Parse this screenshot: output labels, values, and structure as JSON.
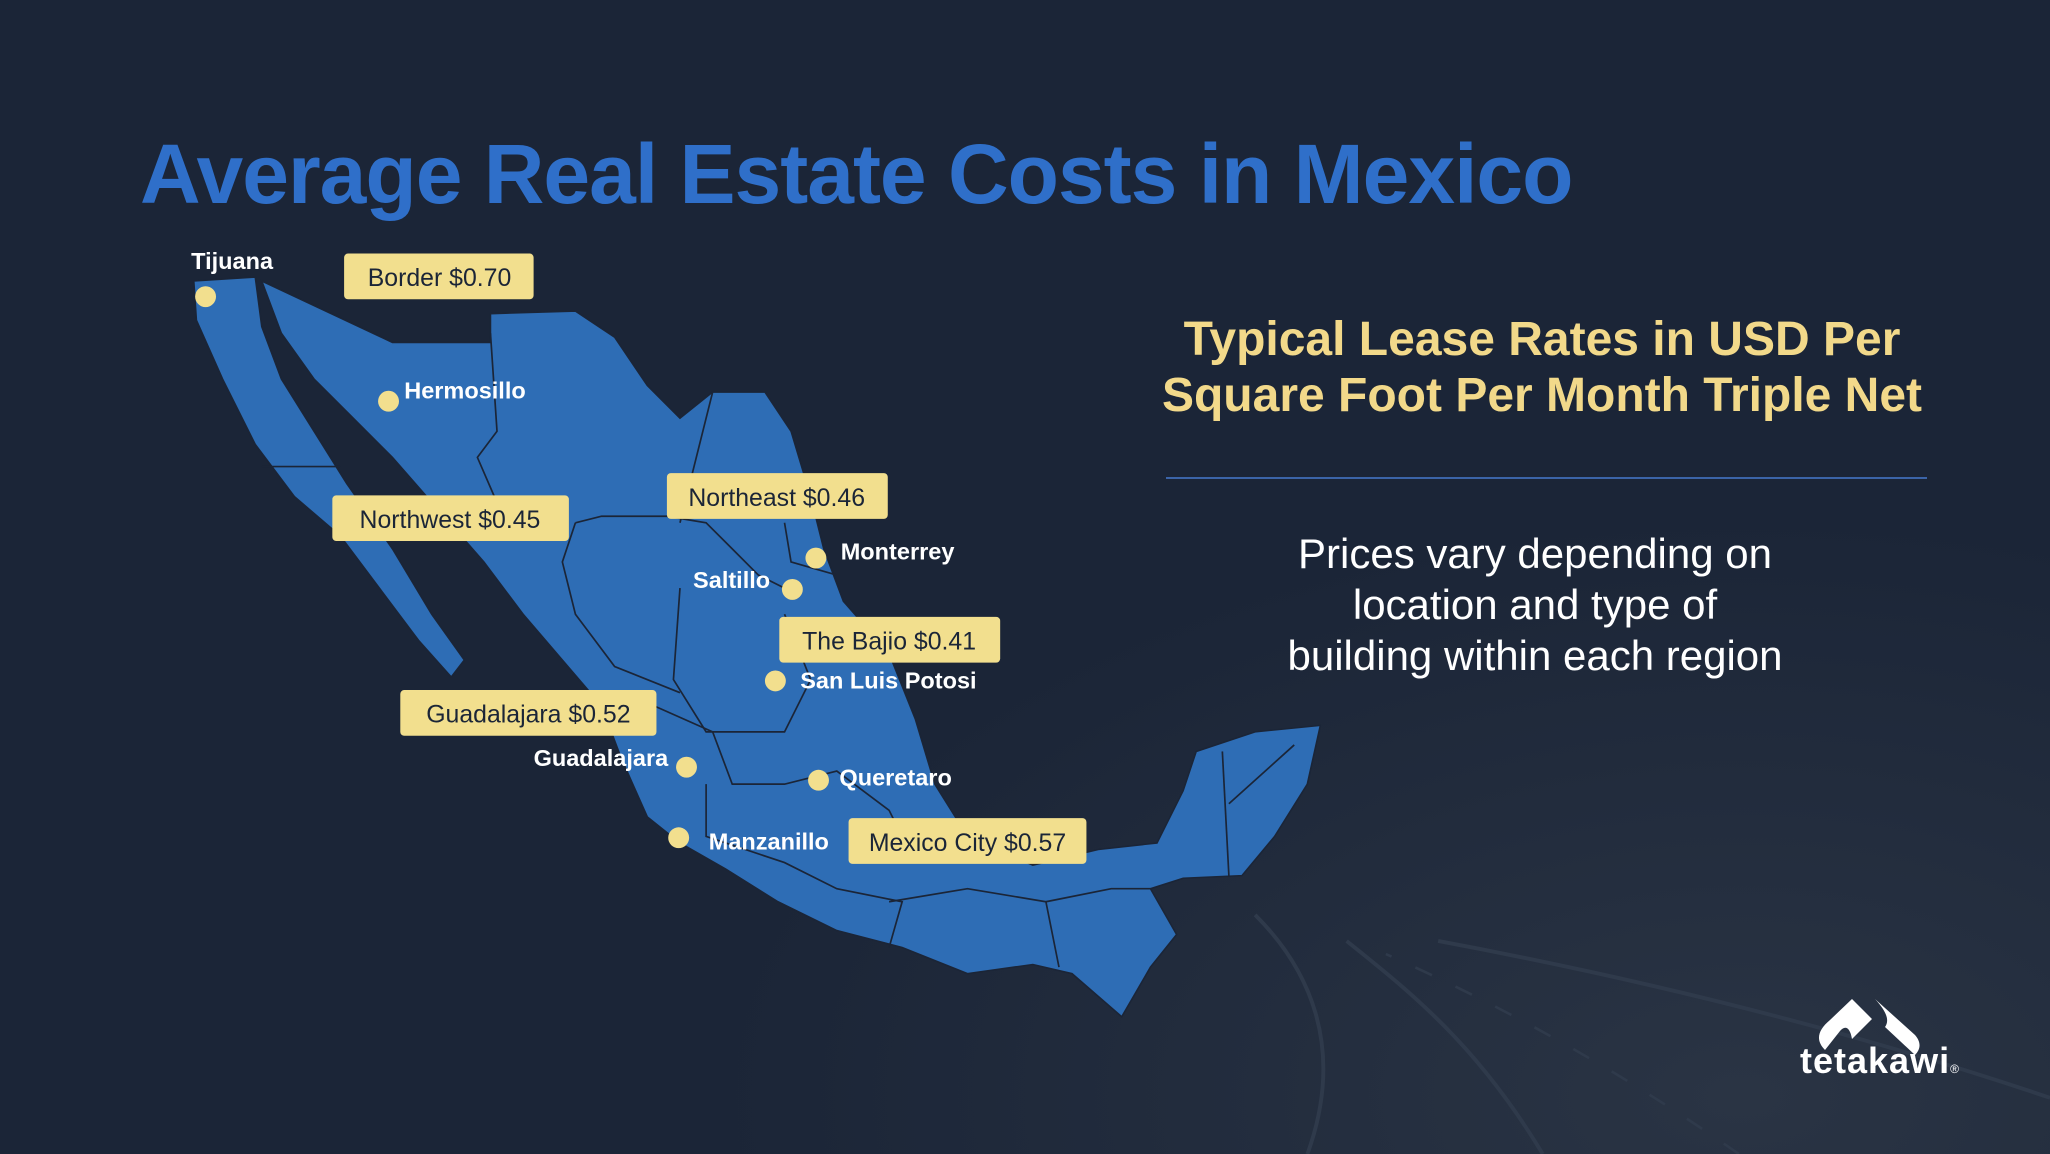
{
  "title": "Average Real Estate Costs in Mexico",
  "heading_line1": "Typical Lease Rates in USD Per",
  "heading_line2": "Square Foot Per Month Triple Net",
  "description": "Prices vary depending on location and type of building within each region",
  "colors": {
    "background": "#1b2537",
    "title": "#2f6fc9",
    "map": "#2e6db5",
    "callout": "#f2df8e",
    "heading": "#f2d98a"
  },
  "regions": [
    {
      "label": "Border $0.70"
    },
    {
      "label": "Northwest $0.45"
    },
    {
      "label": "Northeast $0.46"
    },
    {
      "label": "The Bajio $0.41"
    },
    {
      "label": "Guadalajara $0.52"
    },
    {
      "label": "Mexico City $0.57"
    }
  ],
  "cities": [
    "Tijuana",
    "Hermosillo",
    "Monterrey",
    "Saltillo",
    "San Luis Potosi",
    "Guadalajara",
    "Queretaro",
    "Manzanillo"
  ],
  "logo": {
    "text": "tetakawi",
    "mark": "®",
    "icon": "mountain-logo-icon"
  }
}
